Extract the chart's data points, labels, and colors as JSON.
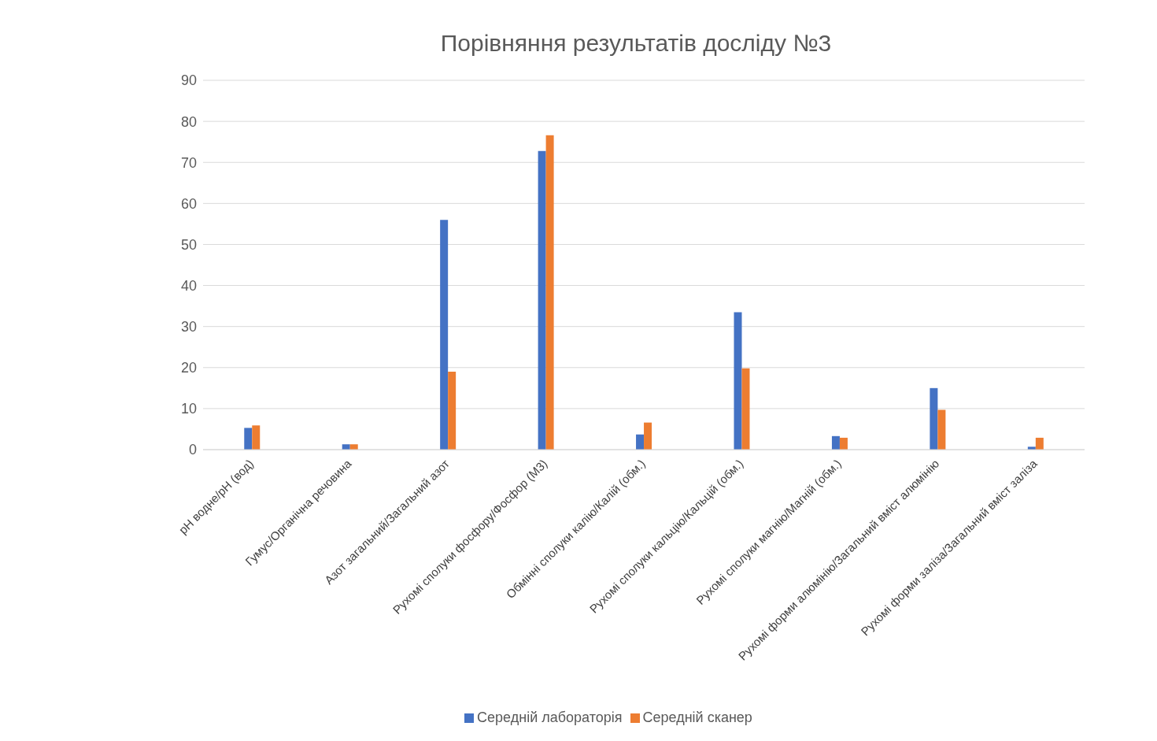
{
  "chart_data": {
    "type": "bar",
    "title": "Порівняння результатів досліду №3",
    "categories": [
      "pH водне/pH (вод)",
      "Гумус/Органічна речовина",
      "Азот загальний/Загальний азот",
      "Рухомі сполуки фосфору/Фосфор (М3)",
      "Обмінні сполуки калію/Калій (обм.)",
      "Рухомі сполуки кальцію/Кальцій (обм.)",
      "Рухомі сполуки магнію/Магній (обм.)",
      "Рухомі форми алюмінію/Загальний вміст алюмінію",
      "Рухомі форми заліза/Загальний вміст заліза"
    ],
    "series": [
      {
        "name": "Середній лабораторія",
        "color": "#4472c4",
        "values": [
          5.3,
          1.3,
          56,
          72.8,
          3.7,
          33.5,
          3.3,
          15,
          0.7
        ]
      },
      {
        "name": "Середній сканер",
        "color": "#ed7d31",
        "values": [
          5.9,
          1.3,
          19,
          76.6,
          6.6,
          19.8,
          2.9,
          9.7,
          2.9
        ]
      }
    ],
    "ylim": [
      0,
      90
    ],
    "yticks": [
      0,
      10,
      20,
      30,
      40,
      50,
      60,
      70,
      80,
      90
    ],
    "grid": "y",
    "legend": "bottom"
  }
}
